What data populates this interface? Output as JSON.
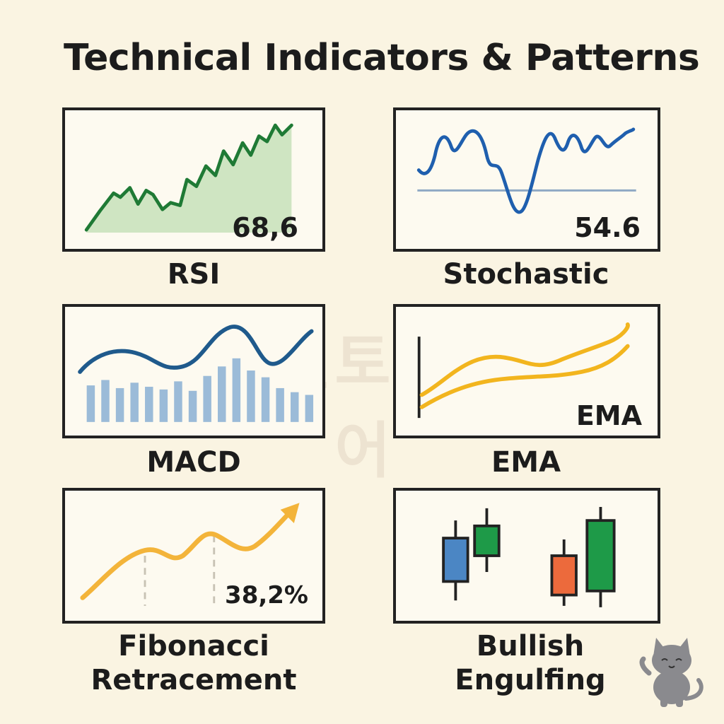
{
  "title": "Technical Indicators & Patterns",
  "watermark": "코린토코인어",
  "panels": {
    "rsi": {
      "caption": "RSI",
      "value": "68,6"
    },
    "stochastic": {
      "caption": "Stochastic",
      "value": "54.6"
    },
    "macd": {
      "caption": "MACD"
    },
    "ema": {
      "caption": "EMA",
      "value": "EMA"
    },
    "fibonacci": {
      "caption_line1": "Fibonacci",
      "caption_line2": "Retracement",
      "value": "38,2%"
    },
    "engulfing": {
      "caption_line1": "Bullish",
      "caption_line2": "Engulfing"
    }
  },
  "colors": {
    "background": "#faf4e2",
    "rsi_line": "#1f7a35",
    "rsi_fill": "#cfe5c2",
    "stochastic_line": "#1f5fae",
    "macd_line": "#1f5a8c",
    "macd_bars": "#9bbbd8",
    "ema_line": "#f2b51e",
    "fib_line": "#f3b43a",
    "bearish_blue": "#4b86c4",
    "bullish_green": "#1e9a48",
    "bearish_orange": "#ec6a3c"
  },
  "icons": [
    "cat-mascot-icon"
  ]
}
